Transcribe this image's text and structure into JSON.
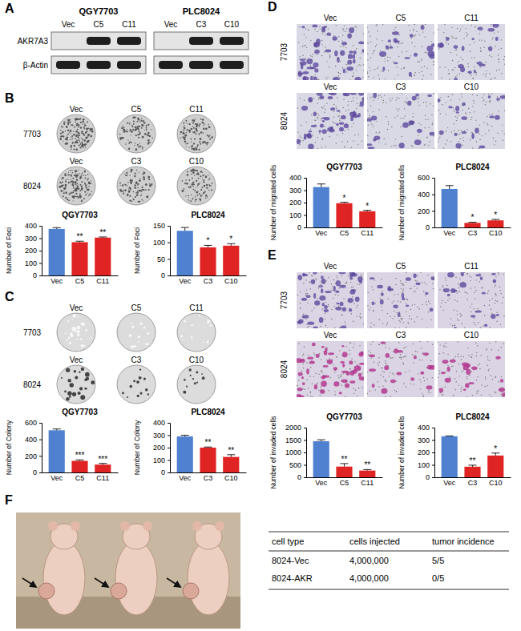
{
  "panel_labels": [
    "A",
    "B",
    "C",
    "D",
    "E",
    "F"
  ],
  "blot": {
    "groups": [
      {
        "label": "QGY7703",
        "lanes": [
          "Vec",
          "C5",
          "C11"
        ]
      },
      {
        "label": "PLC8024",
        "lanes": [
          "Vec",
          "C3",
          "C10"
        ]
      }
    ],
    "rows": [
      {
        "label": "AKR7A3",
        "bands": [
          false,
          true,
          true,
          false,
          true,
          true
        ]
      },
      {
        "label": "β-Actin",
        "bands": [
          true,
          true,
          true,
          true,
          true,
          true
        ]
      }
    ]
  },
  "image_panels": [
    {
      "rows": [
        {
          "label": "7703",
          "columns": [
            "Vec",
            "C5",
            "C11"
          ]
        },
        {
          "label": "8024",
          "columns": [
            "Vec",
            "C3",
            "C10"
          ]
        }
      ]
    },
    {
      "rows": [
        {
          "label": "7703",
          "columns": [
            "Vec",
            "C5",
            "C11"
          ]
        },
        {
          "label": "8024",
          "columns": [
            "Vec",
            "C3",
            "C10"
          ]
        }
      ]
    },
    {
      "rows": [
        {
          "label": "7703",
          "columns": [
            "Vec",
            "C5",
            "C11"
          ]
        },
        {
          "label": "8024",
          "columns": [
            "Vec",
            "C3",
            "C10"
          ]
        }
      ]
    },
    {
      "rows": [
        {
          "label": "7703",
          "columns": [
            "Vec",
            "C5",
            "C11"
          ]
        },
        {
          "label": "8024",
          "columns": [
            "Vec",
            "C3",
            "C10"
          ]
        }
      ]
    }
  ],
  "chart_data": [
    {
      "type": "bar",
      "title": "QGY7703",
      "y_label": "Number of Foci",
      "categories": [
        "Vec",
        "C5",
        "C11"
      ],
      "values": [
        375,
        268,
        305
      ],
      "errors": [
        10,
        8,
        5
      ],
      "colors": [
        "#4f81d0",
        "#e02424",
        "#e02424"
      ],
      "annotations": [
        null,
        "**",
        "**"
      ],
      "ylim": [
        0,
        400
      ],
      "yticks": [
        0,
        100,
        200,
        300,
        400
      ]
    },
    {
      "type": "bar",
      "title": "PLC8024",
      "y_label": "Number of Foci",
      "categories": [
        "Vec",
        "C3",
        "C10"
      ],
      "values": [
        135,
        85,
        90
      ],
      "errors": [
        10,
        6,
        6
      ],
      "colors": [
        "#4f81d0",
        "#e02424",
        "#e02424"
      ],
      "annotations": [
        null,
        "*",
        "*"
      ],
      "ylim": [
        0,
        150
      ],
      "yticks": [
        0,
        50,
        100,
        150
      ]
    },
    {
      "type": "bar",
      "title": "QGY7703",
      "y_label": "Number of Colony",
      "categories": [
        "Vec",
        "C5",
        "C11"
      ],
      "values": [
        510,
        140,
        95
      ],
      "errors": [
        15,
        12,
        15
      ],
      "colors": [
        "#4f81d0",
        "#e02424",
        "#e02424"
      ],
      "annotations": [
        null,
        "***",
        "***"
      ],
      "ylim": [
        0,
        600
      ],
      "yticks": [
        0,
        200,
        400,
        600
      ]
    },
    {
      "type": "bar",
      "title": "PLC8024",
      "y_label": "Number of Colony",
      "categories": [
        "Vec",
        "C3",
        "C10"
      ],
      "values": [
        290,
        200,
        125
      ],
      "errors": [
        10,
        5,
        18
      ],
      "colors": [
        "#4f81d0",
        "#e02424",
        "#e02424"
      ],
      "annotations": [
        null,
        "**",
        "**"
      ],
      "ylim": [
        0,
        400
      ],
      "yticks": [
        0,
        100,
        200,
        300,
        400
      ]
    },
    {
      "type": "bar",
      "title": "QGY7703",
      "y_label": "Number of migrated cells",
      "categories": [
        "Vec",
        "C5",
        "C11"
      ],
      "values": [
        325,
        195,
        130
      ],
      "errors": [
        25,
        8,
        8
      ],
      "colors": [
        "#4f81d0",
        "#e02424",
        "#e02424"
      ],
      "annotations": [
        null,
        "*",
        "*"
      ],
      "ylim": [
        0,
        400
      ],
      "yticks": [
        0,
        100,
        200,
        300,
        400
      ]
    },
    {
      "type": "bar",
      "title": "PLC8024",
      "y_label": "Number of migrated cells",
      "categories": [
        "Vec",
        "C3",
        "C10"
      ],
      "values": [
        465,
        55,
        85
      ],
      "errors": [
        40,
        8,
        12
      ],
      "colors": [
        "#4f81d0",
        "#e02424",
        "#e02424"
      ],
      "annotations": [
        null,
        "*",
        "*"
      ],
      "ylim": [
        0,
        600
      ],
      "yticks": [
        0,
        200,
        400,
        600
      ]
    },
    {
      "type": "bar",
      "title": "QGY7703",
      "y_label": "Number of invaded cells",
      "categories": [
        "Vec",
        "C5",
        "C11"
      ],
      "values": [
        1450,
        430,
        270
      ],
      "errors": [
        60,
        120,
        40
      ],
      "colors": [
        "#4f81d0",
        "#e02424",
        "#e02424"
      ],
      "annotations": [
        null,
        "**",
        "**"
      ],
      "ylim": [
        0,
        2000
      ],
      "yticks": [
        0,
        500,
        1000,
        1500,
        2000
      ]
    },
    {
      "type": "bar",
      "title": "PLC8024",
      "y_label": "Number of invaded cells",
      "categories": [
        "Vec",
        "C3",
        "C10"
      ],
      "values": [
        330,
        85,
        175
      ],
      "errors": [
        3,
        12,
        20
      ],
      "colors": [
        "#4f81d0",
        "#e02424",
        "#e02424"
      ],
      "annotations": [
        null,
        "**",
        "*"
      ],
      "ylim": [
        0,
        400
      ],
      "yticks": [
        0,
        100,
        200,
        300,
        400
      ]
    }
  ],
  "table": {
    "header": [
      "cell type",
      "cells injected",
      "tumor incidence"
    ],
    "rows": [
      [
        "8024-Vec",
        "4,000,000",
        "5/5"
      ],
      [
        "8024-AKR",
        "4,000,000",
        "0/5"
      ]
    ]
  }
}
